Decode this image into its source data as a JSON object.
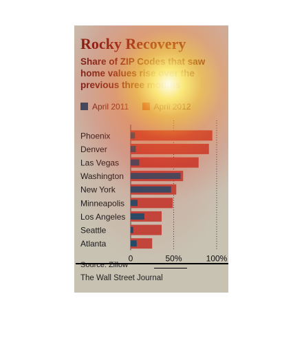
{
  "title": "Rocky Recovery",
  "subtitle": "Share of ZIP Codes that saw home values rise over the previous three months",
  "source": "Source: Zillow",
  "publisher": "The Wall Street Journal",
  "colors": {
    "april_2011": "#1c4c6b",
    "april_2012": "#c0463c",
    "title": "#7a1a12",
    "background": "#c8c2b3",
    "heat_glow": "#ffd23c"
  },
  "chart_data": {
    "type": "bar",
    "orientation": "horizontal",
    "categories": [
      "Phoenix",
      "Denver",
      "Las Vegas",
      "Washington",
      "New York",
      "Minneapolis",
      "Los Angeles",
      "Seattle",
      "Atlanta"
    ],
    "series": [
      {
        "name": "April 2011",
        "values": [
          5,
          6,
          10,
          58,
          47,
          8,
          16,
          3,
          7
        ]
      },
      {
        "name": "April 2012",
        "values": [
          95,
          91,
          79,
          61,
          53,
          49,
          36,
          36,
          25
        ]
      }
    ],
    "xlim": [
      0,
      100
    ],
    "xticks": [
      0,
      50,
      100
    ],
    "xtick_labels": [
      "0",
      "50%",
      "100%"
    ],
    "xlabel": "",
    "ylabel": "",
    "grid": "dotted vertical lines at 50% and 100%",
    "legend": "top"
  }
}
